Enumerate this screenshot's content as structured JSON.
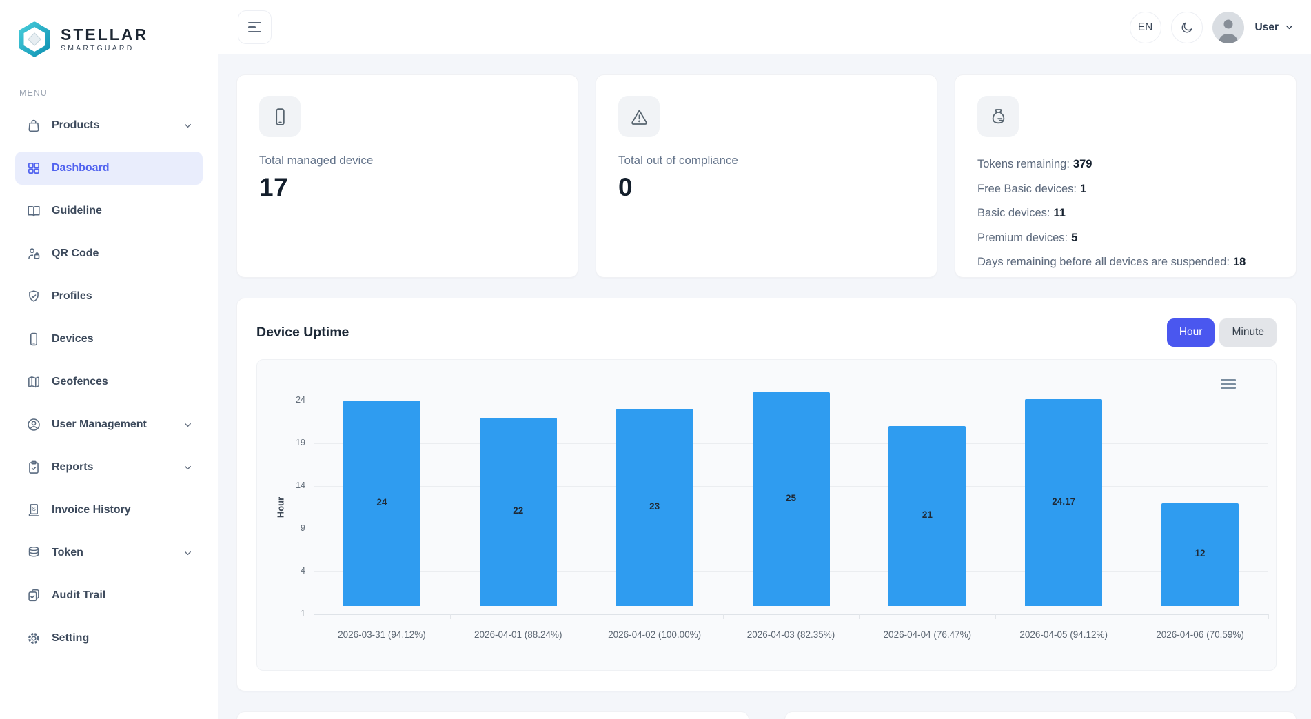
{
  "brand": {
    "name": "STELLAR",
    "subtitle": "SMARTGUARD"
  },
  "sidebar": {
    "section_label": "MENU",
    "items": [
      {
        "label": "Products",
        "icon": "bag-icon",
        "expandable": true,
        "active": false
      },
      {
        "label": "Dashboard",
        "icon": "grid-icon",
        "expandable": false,
        "active": true
      },
      {
        "label": "Guideline",
        "icon": "book-icon",
        "expandable": false,
        "active": false
      },
      {
        "label": "QR Code",
        "icon": "user-lock-icon",
        "expandable": false,
        "active": false
      },
      {
        "label": "Profiles",
        "icon": "shield-check-icon",
        "expandable": false,
        "active": false
      },
      {
        "label": "Devices",
        "icon": "smartphone-icon",
        "expandable": false,
        "active": false
      },
      {
        "label": "Geofences",
        "icon": "map-icon",
        "expandable": false,
        "active": false
      },
      {
        "label": "User Management",
        "icon": "user-circle-icon",
        "expandable": true,
        "active": false
      },
      {
        "label": "Reports",
        "icon": "clipboard-check-icon",
        "expandable": true,
        "active": false
      },
      {
        "label": "Invoice History",
        "icon": "receipt-icon",
        "expandable": false,
        "active": false
      },
      {
        "label": "Token",
        "icon": "database-icon",
        "expandable": true,
        "active": false
      },
      {
        "label": "Audit Trail",
        "icon": "audit-clipboard-icon",
        "expandable": false,
        "active": false
      },
      {
        "label": "Setting",
        "icon": "gear-icon",
        "expandable": false,
        "active": false
      }
    ]
  },
  "header": {
    "language": "EN",
    "user_label": "User"
  },
  "stats": {
    "managed": {
      "label": "Total managed device",
      "value": "17"
    },
    "compliance": {
      "label": "Total out of compliance",
      "value": "0"
    },
    "tokens": {
      "rows": [
        {
          "label": "Tokens remaining:",
          "value": "379"
        },
        {
          "label": "Free Basic devices:",
          "value": "1"
        },
        {
          "label": "Basic devices:",
          "value": "11"
        },
        {
          "label": "Premium devices:",
          "value": "5"
        },
        {
          "label": "Days remaining before all devices are suspended:",
          "value": "18"
        }
      ]
    }
  },
  "uptime": {
    "title": "Device Uptime",
    "hour_button": "Hour",
    "minute_button": "Minute"
  },
  "chart_data": {
    "type": "bar",
    "title": "Device Uptime",
    "categories": [
      "2026-03-31 (94.12%)",
      "2026-04-01 (88.24%)",
      "2026-04-02 (100.00%)",
      "2026-04-03 (82.35%)",
      "2026-04-04 (76.47%)",
      "2026-04-05 (94.12%)",
      "2026-04-06 (70.59%)"
    ],
    "values": [
      24,
      22,
      23,
      25,
      21,
      24.17,
      12
    ],
    "bar_labels": [
      "24",
      "22",
      "23",
      "25",
      "21",
      "24.17",
      "12"
    ],
    "uptime_percentages": [
      94.12,
      88.24,
      100.0,
      82.35,
      76.47,
      94.12,
      70.59
    ],
    "xlabel": "",
    "ylabel": "Hour",
    "yticks": [
      24,
      19,
      14,
      9,
      4,
      -1
    ],
    "ylim": [
      -1,
      25.5
    ],
    "grid": true,
    "legend": "none",
    "data_labels": true,
    "bar_color": "#2f9cf0"
  },
  "colors": {
    "accent": "#4a57ef",
    "accent-bg": "#e9edfc",
    "bar": "#2f9cf0",
    "logo-teal": "#2cb8cc",
    "logo-teal-dark": "#139ab8"
  }
}
